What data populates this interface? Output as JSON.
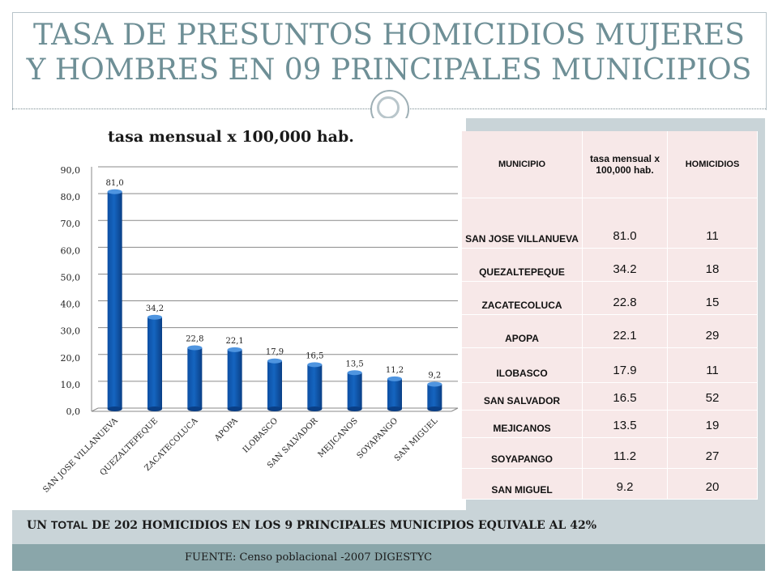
{
  "slide": {
    "title_line1": "TASA DE PRESUNTOS HOMICIDIOS MUJERES",
    "title_line2": "Y HOMBRES EN 09 PRINCIPALES MUNICIPIOS",
    "summary_prefix": "UN ",
    "summary_total": "TOTAL",
    "summary_rest": " DE 202 HOMICIDIOS EN LOS 9 PRINCIPALES MUNICIPIOS  EQUIVALE AL 42%",
    "source": "FUENTE: Censo poblacional -2007  DIGESTYC"
  },
  "colors": {
    "bar": "#1565c0",
    "bar_top": "#4f95e0",
    "title": "#6e8f96",
    "table_bg": "#f7e8e8",
    "band": "#8aa6aa"
  },
  "chart_data": {
    "type": "bar",
    "title": "tasa mensual x 100,000 hab.",
    "categories": [
      "SAN JOSE VILLANUEVA",
      "QUEZALTEPEQUE",
      "ZACATECOLUCA",
      "APOPA",
      "ILOBASCO",
      "SAN SALVADOR",
      "MEJICANOS",
      "SOYAPANGO",
      "SAN MIGUEL"
    ],
    "values": [
      81.0,
      34.2,
      22.8,
      22.1,
      17.9,
      16.5,
      13.5,
      11.2,
      9.2
    ],
    "value_labels": [
      "81,0",
      "34,2",
      "22,8",
      "22,1",
      "17,9",
      "16,5",
      "13,5",
      "11,2",
      "9,2"
    ],
    "ylim": [
      0,
      90
    ],
    "yticks": [
      "0,0",
      "10,0",
      "20,0",
      "30,0",
      "40,0",
      "50,0",
      "60,0",
      "70,0",
      "80,0",
      "90,0"
    ],
    "grid": true,
    "xlabel": "",
    "ylabel": ""
  },
  "table": {
    "headers": [
      "MUNICIPIO",
      "tasa mensual x 100,000 hab.",
      "HOMICIDIOS"
    ],
    "rows": [
      [
        "SAN JOSE VILLANUEVA",
        "81.0",
        "11"
      ],
      [
        "QUEZALTEPEQUE",
        "34.2",
        "18"
      ],
      [
        "ZACATECOLUCA",
        "22.8",
        "15"
      ],
      [
        "APOPA",
        "22.1",
        "29"
      ],
      [
        "ILOBASCO",
        "17.9",
        "11"
      ],
      [
        "SAN SALVADOR",
        "16.5",
        "52"
      ],
      [
        "MEJICANOS",
        "13.5",
        "19"
      ],
      [
        "SOYAPANGO",
        "11.2",
        "27"
      ],
      [
        "SAN MIGUEL",
        "9.2",
        "20"
      ]
    ]
  }
}
